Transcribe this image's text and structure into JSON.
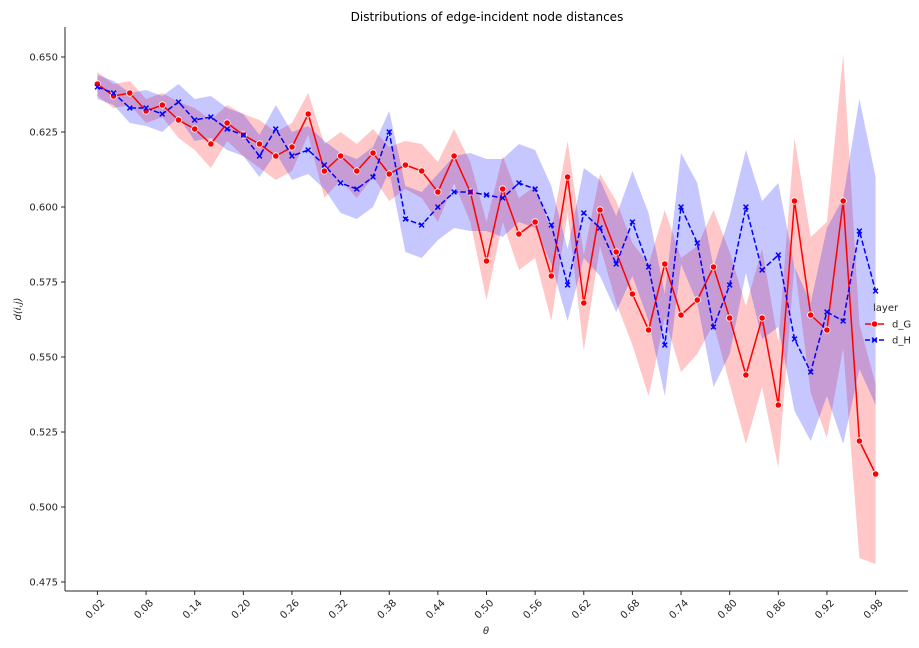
{
  "chart_data": {
    "type": "line",
    "title": "Distributions of edge-incident node distances",
    "xlabel": "θ",
    "ylabel": "d(i,j)",
    "xlim": [
      -0.02,
      1.02
    ],
    "ylim": [
      0.472,
      0.66
    ],
    "grid": false,
    "legend": {
      "title": "layer",
      "placement": "right"
    },
    "x_ticks": [
      "0.02",
      "0.08",
      "0.14",
      "0.20",
      "0.26",
      "0.32",
      "0.38",
      "0.44",
      "0.50",
      "0.56",
      "0.62",
      "0.68",
      "0.74",
      "0.80",
      "0.86",
      "0.92",
      "0.98"
    ],
    "y_ticks": [
      "0.475",
      "0.500",
      "0.525",
      "0.550",
      "0.575",
      "0.600",
      "0.625",
      "0.650"
    ],
    "x": [
      0.02,
      0.04,
      0.06,
      0.08,
      0.1,
      0.12,
      0.14,
      0.16,
      0.18,
      0.2,
      0.22,
      0.24,
      0.26,
      0.28,
      0.3,
      0.32,
      0.34,
      0.36,
      0.38,
      0.4,
      0.42,
      0.44,
      0.46,
      0.48,
      0.5,
      0.52,
      0.54,
      0.56,
      0.58,
      0.6,
      0.62,
      0.64,
      0.66,
      0.68,
      0.7,
      0.72,
      0.74,
      0.76,
      0.78,
      0.8,
      0.82,
      0.84,
      0.86,
      0.88,
      0.9,
      0.92,
      0.94,
      0.96,
      0.98
    ],
    "series": [
      {
        "name": "d_G",
        "color": "#ff0000",
        "linestyle": "solid",
        "marker": "circle",
        "values": [
          0.641,
          0.637,
          0.638,
          0.632,
          0.634,
          0.629,
          0.626,
          0.621,
          0.628,
          0.624,
          0.621,
          0.617,
          0.62,
          0.631,
          0.612,
          0.617,
          0.612,
          0.618,
          0.611,
          0.614,
          0.612,
          0.605,
          0.617,
          0.605,
          0.582,
          0.606,
          0.591,
          0.595,
          0.577,
          0.61,
          0.568,
          0.599,
          0.585,
          0.571,
          0.559,
          0.581,
          0.564,
          0.569,
          0.58,
          0.563,
          0.544,
          0.563,
          0.534,
          0.602,
          0.564,
          0.559,
          0.602,
          0.522,
          0.511
        ],
        "ci_low": [
          0.637,
          0.633,
          0.634,
          0.628,
          0.63,
          0.623,
          0.619,
          0.613,
          0.622,
          0.617,
          0.613,
          0.609,
          0.612,
          0.624,
          0.603,
          0.609,
          0.603,
          0.61,
          0.602,
          0.606,
          0.603,
          0.595,
          0.608,
          0.595,
          0.569,
          0.595,
          0.579,
          0.583,
          0.562,
          0.598,
          0.552,
          0.587,
          0.568,
          0.554,
          0.537,
          0.563,
          0.545,
          0.551,
          0.561,
          0.541,
          0.521,
          0.54,
          0.513,
          0.581,
          0.538,
          0.523,
          0.553,
          0.483,
          0.481
        ],
        "ci_high": [
          0.645,
          0.641,
          0.642,
          0.636,
          0.638,
          0.635,
          0.633,
          0.629,
          0.634,
          0.631,
          0.629,
          0.625,
          0.628,
          0.638,
          0.621,
          0.625,
          0.621,
          0.626,
          0.62,
          0.622,
          0.621,
          0.615,
          0.626,
          0.615,
          0.595,
          0.617,
          0.603,
          0.607,
          0.592,
          0.622,
          0.584,
          0.611,
          0.602,
          0.588,
          0.581,
          0.599,
          0.583,
          0.587,
          0.599,
          0.585,
          0.567,
          0.586,
          0.555,
          0.623,
          0.59,
          0.595,
          0.651,
          0.561,
          0.541
        ]
      },
      {
        "name": "d_H",
        "color": "#0000ff",
        "linestyle": "dashed",
        "marker": "x",
        "values": [
          0.64,
          0.638,
          0.633,
          0.633,
          0.631,
          0.635,
          0.629,
          0.63,
          0.626,
          0.624,
          0.617,
          0.626,
          0.617,
          0.619,
          0.614,
          0.608,
          0.606,
          0.61,
          0.625,
          0.596,
          0.594,
          0.6,
          0.605,
          0.605,
          0.604,
          0.603,
          0.608,
          0.606,
          0.594,
          0.574,
          0.598,
          0.593,
          0.581,
          0.595,
          0.58,
          0.554,
          0.6,
          0.588,
          0.56,
          0.574,
          0.6,
          0.579,
          0.584,
          0.556,
          0.545,
          0.565,
          0.562,
          0.592,
          0.572
        ],
        "ci_low": [
          0.636,
          0.634,
          0.628,
          0.627,
          0.625,
          0.63,
          0.622,
          0.623,
          0.619,
          0.617,
          0.61,
          0.618,
          0.609,
          0.611,
          0.606,
          0.598,
          0.596,
          0.6,
          0.612,
          0.585,
          0.583,
          0.589,
          0.593,
          0.592,
          0.592,
          0.59,
          0.595,
          0.593,
          0.581,
          0.562,
          0.583,
          0.577,
          0.565,
          0.577,
          0.562,
          0.537,
          0.581,
          0.568,
          0.54,
          0.551,
          0.578,
          0.556,
          0.56,
          0.532,
          0.522,
          0.537,
          0.521,
          0.546,
          0.534
        ],
        "ci_high": [
          0.644,
          0.642,
          0.638,
          0.639,
          0.637,
          0.641,
          0.636,
          0.637,
          0.633,
          0.631,
          0.624,
          0.634,
          0.625,
          0.627,
          0.622,
          0.618,
          0.616,
          0.62,
          0.632,
          0.607,
          0.605,
          0.611,
          0.617,
          0.618,
          0.616,
          0.616,
          0.621,
          0.619,
          0.607,
          0.586,
          0.613,
          0.609,
          0.597,
          0.612,
          0.598,
          0.571,
          0.618,
          0.608,
          0.58,
          0.597,
          0.619,
          0.602,
          0.608,
          0.58,
          0.568,
          0.593,
          0.603,
          0.636,
          0.61
        ]
      }
    ]
  }
}
